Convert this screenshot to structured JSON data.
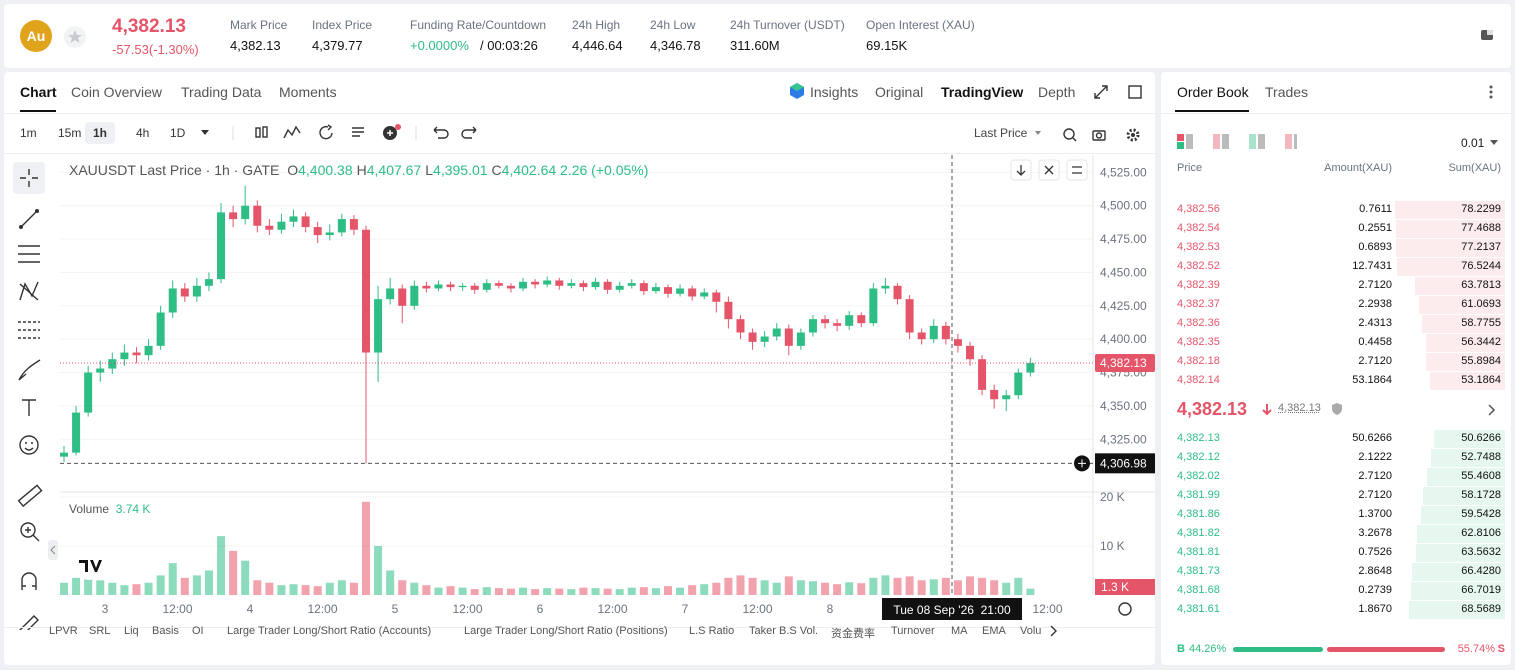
{
  "header": {
    "badge": "Au",
    "price": "4,382.13",
    "change": "-57.53(-1.30%)",
    "stats": [
      {
        "label": "Mark Price",
        "value": "4,382.13"
      },
      {
        "label": "Index Price",
        "value": "4,379.77"
      },
      {
        "label": "Funding Rate/Countdown",
        "value": "+0.0000%",
        "extra": "/ 00:03:26"
      },
      {
        "label": "24h High",
        "value": "4,446.64"
      },
      {
        "label": "24h Low",
        "value": "4,346.78"
      },
      {
        "label": "24h Turnover (USDT)",
        "value": "311.60M"
      },
      {
        "label": "Open Interest (XAU)",
        "value": "69.15K"
      }
    ]
  },
  "tabs": [
    "Chart",
    "Coin Overview",
    "Trading Data",
    "Moments"
  ],
  "views": [
    "Insights",
    "Original",
    "TradingView",
    "Depth"
  ],
  "intervals": [
    "1m",
    "15m",
    "1h",
    "4h",
    "1D"
  ],
  "price_type": "Last Price",
  "chart_data": {
    "type": "candlestick",
    "title": "XAUUSDT Last Price · 1h · GATE",
    "ohlc_legend": [
      {
        "key": "O",
        "value": "4,400.38"
      },
      {
        "key": "H",
        "value": "4,407.67"
      },
      {
        "key": "L",
        "value": "4,395.01"
      },
      {
        "key": "C",
        "value": "4,402.64"
      }
    ],
    "legend_change": "2.26 (+0.05%)",
    "up_color": "#2ebd85",
    "down_color": "#e5556a",
    "ylim": [
      4287,
      4538
    ],
    "yticks": [
      {
        "value": 4525,
        "label": "4,525.00"
      },
      {
        "value": 4500,
        "label": "4,500.00"
      },
      {
        "value": 4475,
        "label": "4,475.00"
      },
      {
        "value": 4450,
        "label": "4,450.00"
      },
      {
        "value": 4425,
        "label": "4,425.00"
      },
      {
        "value": 4400,
        "label": "4,400.00"
      },
      {
        "value": 4375,
        "label": "4,375.00"
      },
      {
        "value": 4350,
        "label": "4,350.00"
      },
      {
        "value": 4325,
        "label": "4,325.00"
      }
    ],
    "x_labels": [
      "3",
      "12:00",
      "4",
      "12:00",
      "5",
      "12:00",
      "6",
      "12:00",
      "7",
      "12:00",
      "8",
      null,
      null,
      "12:00"
    ],
    "candles": [
      [
        4312,
        4320,
        4308,
        4315
      ],
      [
        4315,
        4350,
        4313,
        4345
      ],
      [
        4345,
        4380,
        4342,
        4375
      ],
      [
        4375,
        4384,
        4368,
        4378
      ],
      [
        4378,
        4390,
        4374,
        4385
      ],
      [
        4385,
        4396,
        4380,
        4390
      ],
      [
        4390,
        4394,
        4382,
        4388
      ],
      [
        4388,
        4400,
        4384,
        4395
      ],
      [
        4395,
        4425,
        4392,
        4420
      ],
      [
        4420,
        4444,
        4416,
        4438
      ],
      [
        4438,
        4442,
        4428,
        4432
      ],
      [
        4432,
        4446,
        4428,
        4440
      ],
      [
        4440,
        4450,
        4436,
        4445
      ],
      [
        4445,
        4502,
        4442,
        4495
      ],
      [
        4495,
        4500,
        4484,
        4490
      ],
      [
        4490,
        4515,
        4486,
        4500
      ],
      [
        4500,
        4504,
        4480,
        4485
      ],
      [
        4485,
        4490,
        4478,
        4482
      ],
      [
        4482,
        4494,
        4479,
        4488
      ],
      [
        4488,
        4497,
        4484,
        4492
      ],
      [
        4492,
        4495,
        4480,
        4484
      ],
      [
        4484,
        4488,
        4472,
        4478
      ],
      [
        4478,
        4486,
        4474,
        4480
      ],
      [
        4480,
        4494,
        4477,
        4490
      ],
      [
        4490,
        4493,
        4478,
        4482
      ],
      [
        4482,
        4485,
        4307,
        4390
      ],
      [
        4390,
        4440,
        4368,
        4430
      ],
      [
        4430,
        4446,
        4426,
        4438
      ],
      [
        4438,
        4441,
        4412,
        4425
      ],
      [
        4425,
        4444,
        4422,
        4440
      ],
      [
        4440,
        4443,
        4435,
        4438
      ],
      [
        4438,
        4444,
        4436,
        4441
      ],
      [
        4441,
        4443,
        4436,
        4439
      ],
      [
        4439,
        4442,
        4436,
        4440
      ],
      [
        4440,
        4442,
        4434,
        4437
      ],
      [
        4437,
        4445,
        4435,
        4442
      ],
      [
        4442,
        4444,
        4438,
        4440
      ],
      [
        4440,
        4442,
        4435,
        4438
      ],
      [
        4438,
        4446,
        4436,
        4443
      ],
      [
        4443,
        4445,
        4438,
        4441
      ],
      [
        4441,
        4447,
        4439,
        4444
      ],
      [
        4444,
        4446,
        4437,
        4440
      ],
      [
        4440,
        4445,
        4438,
        4442
      ],
      [
        4442,
        4444,
        4436,
        4439
      ],
      [
        4439,
        4446,
        4437,
        4443
      ],
      [
        4443,
        4445,
        4434,
        4437
      ],
      [
        4437,
        4443,
        4435,
        4440
      ],
      [
        4440,
        4445,
        4438,
        4442
      ],
      [
        4442,
        4444,
        4433,
        4436
      ],
      [
        4436,
        4442,
        4434,
        4439
      ],
      [
        4439,
        4441,
        4431,
        4434
      ],
      [
        4434,
        4441,
        4432,
        4438
      ],
      [
        4438,
        4440,
        4429,
        4432
      ],
      [
        4432,
        4438,
        4430,
        4435
      ],
      [
        4435,
        4437,
        4420,
        4428
      ],
      [
        4428,
        4432,
        4408,
        4415
      ],
      [
        4415,
        4418,
        4400,
        4405
      ],
      [
        4405,
        4408,
        4392,
        4398
      ],
      [
        4398,
        4406,
        4394,
        4402
      ],
      [
        4402,
        4412,
        4399,
        4408
      ],
      [
        4408,
        4411,
        4388,
        4395
      ],
      [
        4395,
        4408,
        4392,
        4405
      ],
      [
        4405,
        4418,
        4402,
        4415
      ],
      [
        4415,
        4418,
        4408,
        4412
      ],
      [
        4412,
        4415,
        4406,
        4410
      ],
      [
        4410,
        4421,
        4407,
        4418
      ],
      [
        4418,
        4420,
        4409,
        4412
      ],
      [
        4412,
        4442,
        4410,
        4438
      ],
      [
        4438,
        4446,
        4434,
        4440
      ],
      [
        4440,
        4442,
        4426,
        4430
      ],
      [
        4430,
        4433,
        4400,
        4405
      ],
      [
        4405,
        4408,
        4396,
        4400
      ],
      [
        4400,
        4415,
        4397,
        4410
      ],
      [
        4410,
        4413,
        4396,
        4400
      ],
      [
        4400,
        4404,
        4390,
        4395
      ],
      [
        4395,
        4398,
        4380,
        4385
      ],
      [
        4385,
        4388,
        4358,
        4362
      ],
      [
        4362,
        4366,
        4348,
        4355
      ],
      [
        4355,
        4362,
        4346,
        4358
      ],
      [
        4358,
        4378,
        4355,
        4375
      ],
      [
        4375,
        4386,
        4372,
        4382.13
      ]
    ],
    "last_price": {
      "value": 4382.13,
      "label": "4,382.13"
    },
    "crosshair_price": {
      "value": 4306.98,
      "label": "4,306.98"
    },
    "crosshair_time": "Tue 08 Sep '26  21:00",
    "volume_label": "Volume",
    "volume_legend": "3.74 K",
    "volume_ylim": [
      0,
      21000
    ],
    "volume_ticks": [
      {
        "value": 20000,
        "label": "20 K"
      },
      {
        "value": 10000,
        "label": "10 K"
      }
    ],
    "volumes": [
      2500,
      3500,
      6000,
      3000,
      2500,
      2000,
      2200,
      2500,
      4000,
      6500,
      3500,
      4000,
      5000,
      12000,
      9000,
      7000,
      3000,
      2500,
      2000,
      2200,
      2000,
      1800,
      2500,
      3000,
      2500,
      19000,
      10000,
      5000,
      3000,
      2500,
      2000,
      1500,
      1800,
      1500,
      1200,
      1600,
      1400,
      1300,
      1500,
      1200,
      1400,
      1300,
      1200,
      1500,
      1400,
      1300,
      1200,
      1500,
      1600,
      1400,
      1800,
      1500,
      2000,
      2200,
      2500,
      3500,
      4000,
      3500,
      3000,
      2500,
      3800,
      3000,
      2800,
      2500,
      2200,
      2600,
      2400,
      3500,
      4000,
      3500,
      3800,
      3000,
      3200,
      3500,
      3000,
      3800,
      3500,
      3000,
      2500,
      3500,
      1300
    ],
    "last_volume": {
      "value": 1300,
      "label": "1.3 K"
    }
  },
  "indicators": [
    "LPVR",
    "SRL",
    "Liq",
    "Basis",
    "OI",
    "Large Trader Long/Short Ratio (Accounts)",
    "Large Trader Long/Short Ratio (Positions)",
    "L.S Ratio",
    "Taker B.S Vol.",
    "资金费率",
    "Turnover",
    "MA",
    "EMA",
    "Volume"
  ],
  "order_book": {
    "tabs": [
      "Order Book",
      "Trades"
    ],
    "precision": "0.01",
    "columns": [
      "Price",
      "Amount(XAU)",
      "Sum(XAU)"
    ],
    "asks": [
      [
        "4,382.56",
        "0.7611",
        "78.2299"
      ],
      [
        "4,382.54",
        "0.2551",
        "77.4688"
      ],
      [
        "4,382.53",
        "0.6893",
        "77.2137"
      ],
      [
        "4,382.52",
        "12.7431",
        "76.5244"
      ],
      [
        "4,382.39",
        "2.7120",
        "63.7813"
      ],
      [
        "4,382.37",
        "2.2938",
        "61.0693"
      ],
      [
        "4,382.36",
        "2.4313",
        "58.7755"
      ],
      [
        "4,382.35",
        "0.4458",
        "56.3442"
      ],
      [
        "4,382.18",
        "2.7120",
        "55.8984"
      ],
      [
        "4,382.14",
        "53.1864",
        "53.1864"
      ]
    ],
    "last": "4,382.13",
    "mark": "4,382.13",
    "bids": [
      [
        "4,382.13",
        "50.6266",
        "50.6266"
      ],
      [
        "4,382.12",
        "2.1222",
        "52.7488"
      ],
      [
        "4,382.02",
        "2.7120",
        "55.4608"
      ],
      [
        "4,381.99",
        "2.7120",
        "58.1728"
      ],
      [
        "4,381.86",
        "1.3700",
        "59.5428"
      ],
      [
        "4,381.82",
        "3.2678",
        "62.8106"
      ],
      [
        "4,381.81",
        "0.7526",
        "63.5632"
      ],
      [
        "4,381.73",
        "2.8648",
        "66.4280"
      ],
      [
        "4,381.68",
        "0.2739",
        "66.7019"
      ],
      [
        "4,381.61",
        "1.8670",
        "68.5689"
      ]
    ],
    "buy_key": "B",
    "buy_ratio": "44.26%",
    "sell_ratio": "55.74%",
    "sell_key": "S"
  }
}
